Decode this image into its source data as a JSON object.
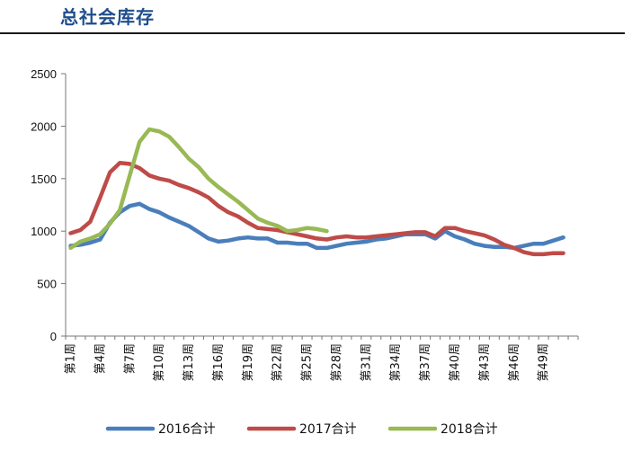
{
  "page": {
    "title": "总社会库存"
  },
  "chart_data": {
    "type": "line",
    "title": "总社会库存",
    "xlabel": "",
    "ylabel": "",
    "ylim": [
      0,
      2500
    ],
    "yticks": [
      0,
      500,
      1000,
      1500,
      2000,
      2500
    ],
    "legend_position": "bottom",
    "grid": false,
    "categories": [
      "第1周",
      "第2周",
      "第3周",
      "第4周",
      "第5周",
      "第6周",
      "第7周",
      "第8周",
      "第9周",
      "第10周",
      "第11周",
      "第12周",
      "第13周",
      "第14周",
      "第15周",
      "第16周",
      "第17周",
      "第18周",
      "第19周",
      "第20周",
      "第21周",
      "第22周",
      "第23周",
      "第24周",
      "第25周",
      "第26周",
      "第27周",
      "第28周",
      "第29周",
      "第30周",
      "第31周",
      "第32周",
      "第33周",
      "第34周",
      "第35周",
      "第36周",
      "第37周",
      "第38周",
      "第39周",
      "第40周",
      "第41周",
      "第42周",
      "第43周",
      "第44周",
      "第45周",
      "第46周",
      "第47周",
      "第48周",
      "第49周",
      "第50周",
      "第51周",
      "第52周"
    ],
    "tick_labels": [
      "第1周",
      "第4周",
      "第7周",
      "第10周",
      "第13周",
      "第16周",
      "第19周",
      "第22周",
      "第25周",
      "第28周",
      "第31周",
      "第34周",
      "第37周",
      "第40周",
      "第43周",
      "第46周",
      "第49周"
    ],
    "series": [
      {
        "name": "2016合计",
        "color": "#4a7ebb",
        "values": [
          860,
          870,
          890,
          920,
          1080,
          1180,
          1240,
          1260,
          1210,
          1180,
          1130,
          1090,
          1050,
          990,
          930,
          900,
          910,
          930,
          940,
          930,
          930,
          890,
          890,
          880,
          880,
          840,
          840,
          860,
          880,
          890,
          900,
          920,
          930,
          950,
          970,
          970,
          970,
          930,
          1000,
          950,
          920,
          880,
          860,
          850,
          850,
          840,
          860,
          880,
          880,
          910,
          940,
          null
        ]
      },
      {
        "name": "2017合计",
        "color": "#be4b48",
        "values": [
          980,
          1010,
          1090,
          1320,
          1560,
          1650,
          1640,
          1600,
          1530,
          1500,
          1480,
          1440,
          1410,
          1370,
          1320,
          1240,
          1180,
          1140,
          1080,
          1030,
          1020,
          1010,
          990,
          970,
          950,
          930,
          920,
          940,
          950,
          940,
          940,
          950,
          960,
          970,
          980,
          990,
          990,
          950,
          1030,
          1030,
          1000,
          980,
          960,
          920,
          870,
          840,
          800,
          780,
          780,
          790,
          790,
          null
        ]
      },
      {
        "name": "2018合计",
        "color": "#98b954",
        "values": [
          840,
          900,
          930,
          970,
          1070,
          1200,
          1530,
          1850,
          1970,
          1950,
          1900,
          1800,
          1690,
          1610,
          1500,
          1420,
          1350,
          1280,
          1200,
          1120,
          1080,
          1050,
          1000,
          1010,
          1030,
          1020,
          1000,
          null,
          null,
          null,
          null,
          null,
          null,
          null,
          null,
          null,
          null,
          null,
          null,
          null,
          null,
          null,
          null,
          null,
          null,
          null,
          null,
          null,
          null,
          null,
          null,
          null
        ]
      }
    ]
  }
}
